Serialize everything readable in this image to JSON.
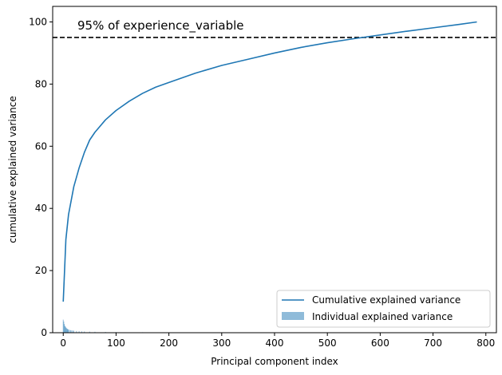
{
  "chart_data": {
    "type": "line",
    "title": "",
    "xlabel": "Principal component index",
    "ylabel": "cumulative explained variance",
    "xlim": [
      -20,
      820
    ],
    "ylim": [
      0,
      105
    ],
    "xticks": [
      0,
      100,
      200,
      300,
      400,
      500,
      600,
      700,
      800
    ],
    "yticks": [
      0,
      20,
      40,
      60,
      80,
      100
    ],
    "grid": false,
    "legend_position": "lower-right",
    "threshold": {
      "y": 95,
      "style": "dashed",
      "color": "#000000",
      "label": "95% of experience_variable"
    },
    "series": [
      {
        "name": "Cumulative explained variance",
        "kind": "line",
        "color": "#1f77b4",
        "x": [
          0,
          5,
          10,
          20,
          30,
          40,
          50,
          60,
          80,
          100,
          125,
          150,
          175,
          200,
          250,
          300,
          350,
          400,
          450,
          500,
          550,
          600,
          650,
          700,
          750,
          783
        ],
        "y": [
          10,
          30,
          38,
          47,
          53,
          58,
          62,
          64.5,
          68.5,
          71.5,
          74.5,
          77,
          79,
          80.5,
          83.5,
          86,
          88,
          90,
          91.8,
          93.3,
          94.6,
          95.8,
          97,
          98.1,
          99.2,
          100
        ]
      },
      {
        "name": "Individual explained variance",
        "kind": "bar",
        "color": "#1f77b4",
        "opacity": 0.5,
        "x": [
          0,
          1,
          2,
          3,
          4,
          5,
          6,
          7,
          8,
          9,
          10,
          12,
          14,
          16,
          18,
          20,
          25,
          30,
          35,
          40,
          50,
          60,
          80,
          100,
          150,
          200,
          250
        ],
        "y": [
          4.2,
          3.6,
          2.8,
          2.2,
          2.0,
          1.7,
          1.5,
          1.3,
          1.2,
          1.1,
          1.0,
          0.9,
          0.8,
          0.75,
          0.7,
          0.65,
          0.55,
          0.5,
          0.45,
          0.4,
          0.35,
          0.3,
          0.25,
          0.2,
          0.15,
          0.1,
          0.05
        ]
      }
    ]
  }
}
